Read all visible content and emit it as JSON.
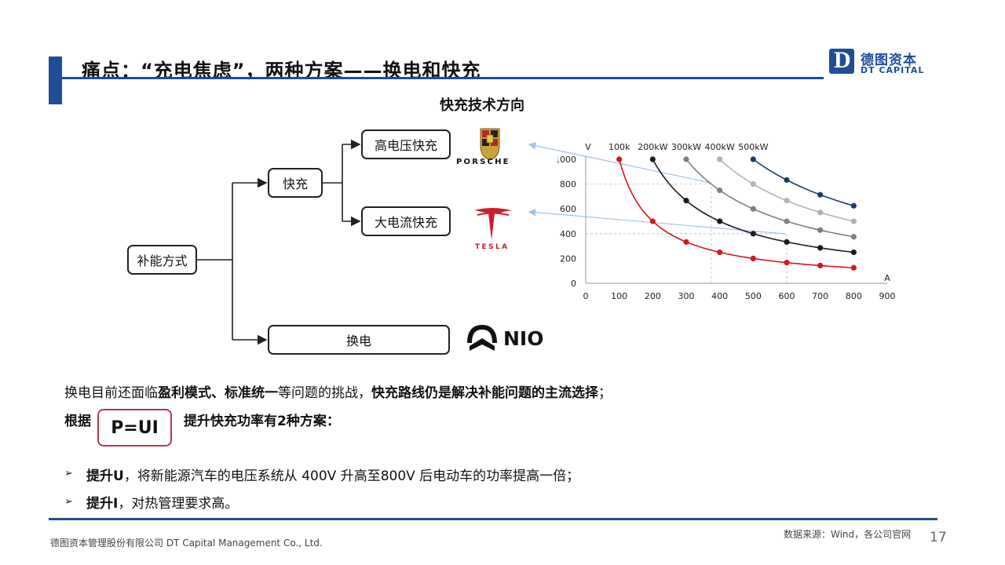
{
  "header": {
    "title": "痛点：“充电焦虑”，两种方案——换电和快充",
    "logo_cn": "德图资本",
    "logo_en": "DT CAPITAL",
    "logo_letter": "D"
  },
  "diagram": {
    "heading": "快充技术方向",
    "root": "补能方式",
    "fast_charge": "快充",
    "high_voltage": "高电压快充",
    "high_current": "大电流快充",
    "battery_swap": "换电",
    "brand_porsche": "PORSCHE",
    "brand_tesla": "TESLA",
    "brand_nio": "NIO"
  },
  "chart_data": {
    "type": "line",
    "xlabel": "A",
    "ylabel": "V",
    "xlim": [
      0,
      900
    ],
    "ylim": [
      0,
      1000
    ],
    "x_ticks": [
      "0",
      "100",
      "200",
      "300",
      "400",
      "500",
      "600",
      "700",
      "800",
      "900"
    ],
    "y_ticks": [
      "0",
      "200",
      "400",
      "600",
      "800",
      "1000"
    ],
    "x_tick_values": [
      0,
      100,
      200,
      300,
      400,
      500,
      600,
      700,
      800,
      900
    ],
    "y_tick_values": [
      0,
      200,
      400,
      600,
      800,
      1000
    ],
    "series": [
      {
        "name": "100k",
        "color": "#d9141e",
        "x": [
          100,
          200,
          300,
          400,
          500,
          600,
          700,
          800
        ],
        "y": [
          1000,
          500,
          333,
          250,
          200,
          167,
          143,
          125
        ]
      },
      {
        "name": "200kW",
        "color": "#1a1a1a",
        "x": [
          200,
          300,
          400,
          500,
          600,
          700,
          800
        ],
        "y": [
          1000,
          667,
          500,
          400,
          333,
          286,
          250
        ]
      },
      {
        "name": "300kW",
        "color": "#7f7f7f",
        "x": [
          300,
          400,
          500,
          600,
          700,
          800
        ],
        "y": [
          1000,
          750,
          600,
          500,
          429,
          375
        ]
      },
      {
        "name": "400kW",
        "color": "#b3b3b3",
        "x": [
          400,
          500,
          600,
          700,
          800
        ],
        "y": [
          1000,
          800,
          667,
          571,
          500
        ]
      },
      {
        "name": "500kW",
        "color": "#1a3a6b",
        "x": [
          500,
          600,
          700,
          800
        ],
        "y": [
          1000,
          833,
          714,
          625
        ]
      }
    ],
    "reference_lines": [
      {
        "x": 375,
        "y": 800
      },
      {
        "x": 600,
        "y": 400
      }
    ]
  },
  "text": {
    "line1_a": "换电目前还面临",
    "line1_b": "盈利模式、标准统一",
    "line1_c": "等问题的挑战，",
    "line1_d": "快充路线仍是解决补能问题的主流选择",
    "line1_e": "；",
    "line2_a": "根据",
    "formula": "P=UI",
    "line2_b": "提升快充功率有2种方案：",
    "bullet_marker": "➢",
    "b1_bold": "提升U",
    "b1_text": "，将新能源汽车的电压系统从 400V 升高至800V 后电动车的功率提高一倍；",
    "b2_bold": "提升I",
    "b2_text": "，对热管理要求高。"
  },
  "footer": {
    "company": "德图资本管理股份有限公司  DT Capital  Management  Co., Ltd.",
    "source": "数据来源：Wind，各公司官网",
    "page": "17"
  },
  "colors": {
    "accent": "#1f4e96",
    "formula_border": "#b23a48",
    "tesla_red": "#cc1f26"
  }
}
